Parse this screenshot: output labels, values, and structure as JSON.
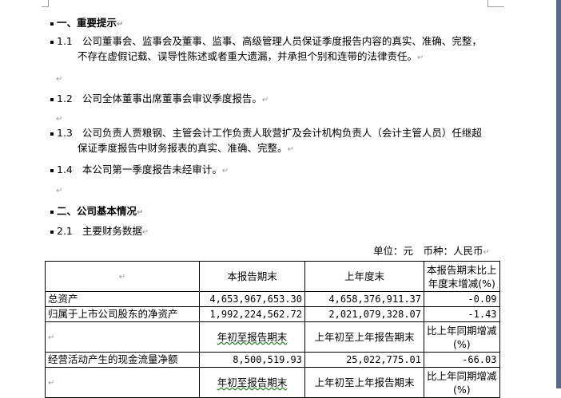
{
  "doc": {
    "section1_title": "一、重要提示",
    "items": [
      {
        "num": "1.1",
        "line1": "公司董事会、监事会及董事、监事、高级管理人员保证季度报告内容的真实、准确、完整，",
        "line2": "不存在虚假记载、误导性陈述或者重大遗漏，并承担个别和连带的法律责任。"
      },
      {
        "num": "1.2",
        "line1": "公司全体董事出席董事会审议季度报告。"
      },
      {
        "num": "1.3",
        "line1": "公司负责人贾粮钢、主管会计工作负责人耿营扩及会计机构负责人（会计主管人员）任继超",
        "line2": "保证季度报告中财务报表的真实、准确、完整。"
      },
      {
        "num": "1.4",
        "line1": "本公司第一季度报告未经审计。"
      }
    ],
    "section2_title": "二、公司基本情况",
    "sub21": {
      "num": "2.1",
      "label": "主要财务数据"
    },
    "unit": "单位：元　币种：人民币",
    "paragraph_mark": "↵"
  },
  "table": {
    "header1": [
      "",
      "本报告期末",
      "上年度末",
      "本报告期末比上",
      "年度末增减(%)"
    ],
    "rows1": [
      [
        "总资产",
        "4,653,967,653.30",
        "4,658,376,911.37",
        "-0.09"
      ],
      [
        "归属于上市公司股东的净资产",
        "1,992,224,562.72",
        "2,021,079,328.07",
        "-1.43"
      ]
    ],
    "header2": [
      "",
      "年初至报告期末",
      "上年初至上年报告期末",
      "比上年同期增减",
      "(%)"
    ],
    "rows2": [
      [
        "经营活动产生的现金流量净额",
        "8,500,519.93",
        "25,022,775.01",
        "-66.03"
      ]
    ],
    "header3": [
      "",
      "年初至报告期末",
      "上年初至上年报告期末",
      "比上年同期增减",
      "(%)"
    ]
  }
}
